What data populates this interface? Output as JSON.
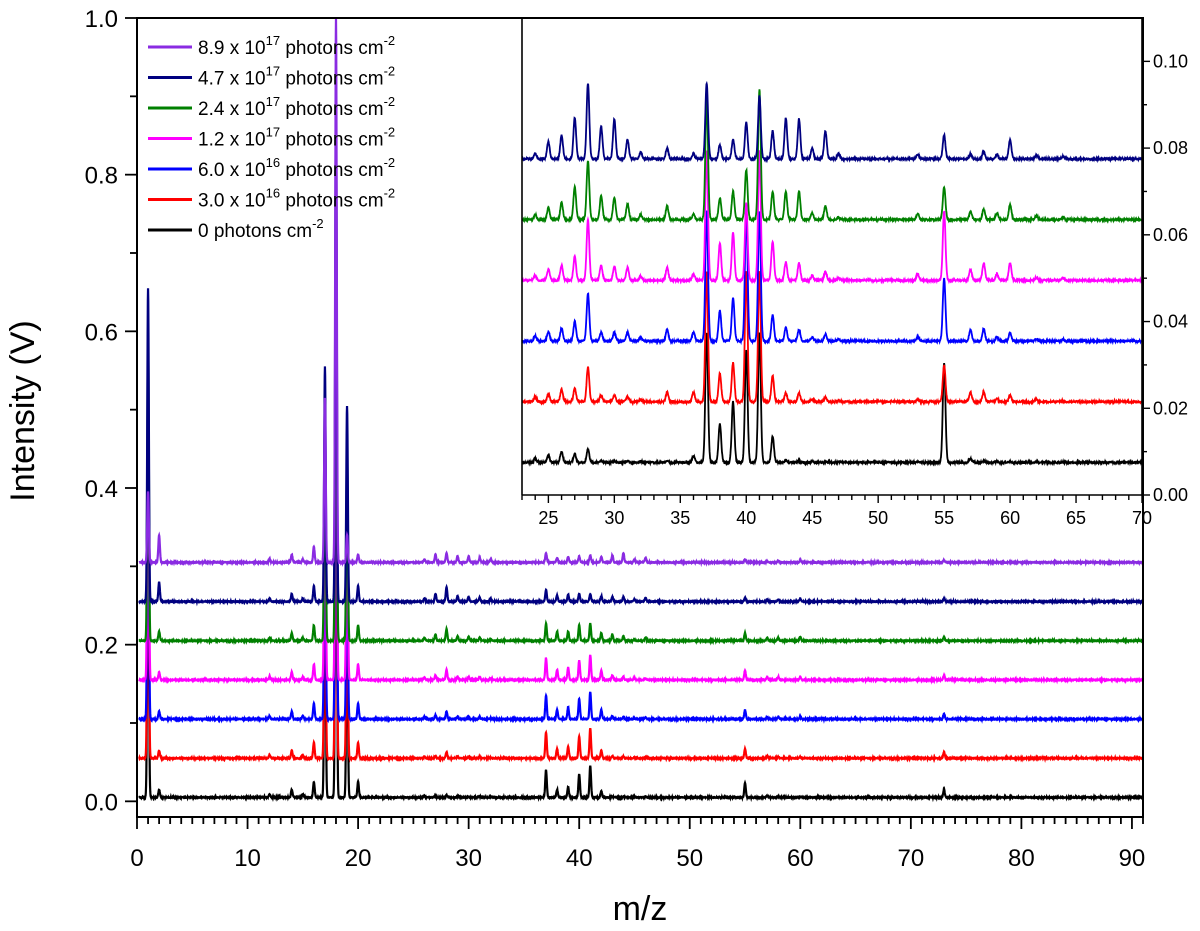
{
  "chart_data": {
    "type": "line",
    "xlabel": "m/z",
    "ylabel": "Intensity (V)",
    "xlim": [
      0,
      91
    ],
    "ylim": [
      -0.02,
      1.0
    ],
    "xticks": [
      "0",
      "10",
      "20",
      "30",
      "40",
      "50",
      "60",
      "70",
      "80",
      "90"
    ],
    "yticks": [
      "0.0",
      "0.2",
      "0.4",
      "0.6",
      "0.8",
      "1.0"
    ],
    "legend": {
      "position": "top-left"
    },
    "series": [
      {
        "name_prefix": "0",
        "name_exp": "",
        "name_suffix": " photons cm",
        "name_unit_exp": "-2",
        "color": "#000000",
        "offset": 0.005
      },
      {
        "name_prefix": "3.0 x 10",
        "name_exp": "16",
        "name_suffix": " photons cm",
        "name_unit_exp": "-2",
        "color": "#ff0000",
        "offset": 0.055
      },
      {
        "name_prefix": "6.0 x 10",
        "name_exp": "16",
        "name_suffix": " photons cm",
        "name_unit_exp": "-2",
        "color": "#0000ff",
        "offset": 0.105
      },
      {
        "name_prefix": "1.2 x 10",
        "name_exp": "17",
        "name_suffix": " photons cm",
        "name_unit_exp": "-2",
        "color": "#ff00ff",
        "offset": 0.155
      },
      {
        "name_prefix": "2.4 x 10",
        "name_exp": "17",
        "name_suffix": " photons cm",
        "name_unit_exp": "-2",
        "color": "#008000",
        "offset": 0.205
      },
      {
        "name_prefix": "4.7 x 10",
        "name_exp": "17",
        "name_suffix": " photons cm",
        "name_unit_exp": "-2",
        "color": "#000080",
        "offset": 0.255
      },
      {
        "name_prefix": "8.9 x 10",
        "name_exp": "17",
        "name_suffix": " photons cm",
        "name_unit_exp": "-2",
        "color": "#8a2be2",
        "offset": 0.305
      }
    ],
    "peak_mz": [
      1,
      2,
      12,
      14,
      15,
      16,
      17,
      18,
      19,
      20,
      26,
      27,
      28,
      29,
      30,
      31,
      32,
      37,
      38,
      39,
      40,
      41,
      42,
      43,
      44,
      45,
      46,
      55,
      57,
      58,
      60,
      73
    ],
    "peak_heights": [
      [
        0.4,
        0.01,
        0.004,
        0.01,
        0.004,
        0.02,
        0.3,
        0.65,
        0.25,
        0.02,
        0.002,
        0.002,
        0.003,
        0.001,
        0.001,
        0.001,
        0.001,
        0.035,
        0.01,
        0.013,
        0.03,
        0.04,
        0.008,
        0.001,
        0.001,
        0.001,
        0.001,
        0.018,
        0.002,
        0.001,
        0.001,
        0.01
      ],
      [
        0.4,
        0.01,
        0.004,
        0.01,
        0.004,
        0.02,
        0.3,
        0.65,
        0.25,
        0.02,
        0.002,
        0.003,
        0.008,
        0.002,
        0.002,
        0.002,
        0.001,
        0.033,
        0.012,
        0.015,
        0.028,
        0.038,
        0.01,
        0.003,
        0.002,
        0.001,
        0.001,
        0.012,
        0.003,
        0.002,
        0.002,
        0.008
      ],
      [
        0.4,
        0.01,
        0.004,
        0.01,
        0.004,
        0.02,
        0.3,
        0.65,
        0.25,
        0.02,
        0.003,
        0.005,
        0.01,
        0.003,
        0.003,
        0.003,
        0.001,
        0.03,
        0.012,
        0.015,
        0.026,
        0.035,
        0.012,
        0.004,
        0.003,
        0.001,
        0.002,
        0.012,
        0.003,
        0.003,
        0.003,
        0.007
      ],
      [
        0.4,
        0.01,
        0.004,
        0.01,
        0.004,
        0.02,
        0.3,
        0.65,
        0.25,
        0.02,
        0.003,
        0.006,
        0.013,
        0.004,
        0.004,
        0.004,
        0.002,
        0.028,
        0.013,
        0.016,
        0.025,
        0.032,
        0.012,
        0.006,
        0.004,
        0.002,
        0.002,
        0.012,
        0.004,
        0.004,
        0.004,
        0.006
      ],
      [
        0.4,
        0.012,
        0.004,
        0.01,
        0.004,
        0.02,
        0.3,
        0.65,
        0.25,
        0.02,
        0.004,
        0.008,
        0.015,
        0.006,
        0.005,
        0.004,
        0.002,
        0.022,
        0.012,
        0.012,
        0.02,
        0.022,
        0.01,
        0.008,
        0.006,
        0.002,
        0.004,
        0.01,
        0.004,
        0.004,
        0.005,
        0.005
      ],
      [
        0.4,
        0.025,
        0.004,
        0.01,
        0.004,
        0.02,
        0.3,
        0.65,
        0.25,
        0.02,
        0.004,
        0.01,
        0.018,
        0.007,
        0.006,
        0.005,
        0.003,
        0.015,
        0.008,
        0.009,
        0.01,
        0.01,
        0.007,
        0.006,
        0.006,
        0.003,
        0.005,
        0.005,
        0.003,
        0.003,
        0.004,
        0.004
      ],
      [
        0.09,
        0.035,
        0.004,
        0.01,
        0.004,
        0.02,
        0.21,
        0.695,
        0.035,
        0.01,
        0.004,
        0.01,
        0.012,
        0.008,
        0.008,
        0.006,
        0.004,
        0.012,
        0.006,
        0.007,
        0.008,
        0.009,
        0.007,
        0.009,
        0.012,
        0.004,
        0.006,
        0.004,
        0.002,
        0.002,
        0.003,
        0.003
      ]
    ],
    "inset": {
      "xlim": [
        23,
        70
      ],
      "ylim": [
        0,
        0.11
      ],
      "xticks": [
        "25",
        "30",
        "35",
        "40",
        "45",
        "50",
        "55",
        "60",
        "65",
        "70"
      ],
      "yticks": [
        "0.00",
        "0.02",
        "0.04",
        "0.06",
        "0.08",
        "0.10"
      ],
      "offsets": [
        0.0075,
        0.0215,
        0.0355,
        0.0495,
        0.0635,
        0.0775
      ],
      "peak_mz": [
        24,
        25,
        26,
        27,
        28,
        29,
        30,
        31,
        32,
        34,
        36,
        37,
        38,
        39,
        40,
        41,
        42,
        43,
        44,
        45,
        46,
        47,
        53,
        55,
        57,
        58,
        59,
        60,
        62,
        64
      ],
      "peak_heights": [
        [
          0.001,
          0.0015,
          0.0025,
          0.002,
          0.003,
          0.0003,
          0.0003,
          0.0003,
          0.0002,
          0.0003,
          0.0015,
          0.03,
          0.009,
          0.014,
          0.026,
          0.03,
          0.006,
          0.0005,
          0.0004,
          0.0002,
          0.0002,
          0.0001,
          0.0002,
          0.023,
          0.0008,
          0.0003,
          0.0002,
          0.0003,
          0.0001,
          0.0001
        ],
        [
          0.0012,
          0.0018,
          0.0028,
          0.003,
          0.008,
          0.0015,
          0.0015,
          0.0012,
          0.0005,
          0.0022,
          0.0022,
          0.03,
          0.0065,
          0.009,
          0.03,
          0.03,
          0.006,
          0.002,
          0.002,
          0.0006,
          0.001,
          0.0003,
          0.0005,
          0.0085,
          0.0022,
          0.0022,
          0.0008,
          0.0015,
          0.0005,
          0.0003
        ],
        [
          0.0012,
          0.0022,
          0.003,
          0.0045,
          0.011,
          0.002,
          0.002,
          0.002,
          0.0008,
          0.0026,
          0.002,
          0.03,
          0.007,
          0.01,
          0.03,
          0.03,
          0.006,
          0.0032,
          0.0026,
          0.0008,
          0.0016,
          0.0004,
          0.001,
          0.0145,
          0.0026,
          0.0028,
          0.0009,
          0.002,
          0.0005,
          0.0004
        ],
        [
          0.0012,
          0.0025,
          0.0035,
          0.0055,
          0.014,
          0.0035,
          0.0032,
          0.003,
          0.0009,
          0.003,
          0.0015,
          0.03,
          0.0085,
          0.011,
          0.018,
          0.03,
          0.009,
          0.0042,
          0.004,
          0.0011,
          0.002,
          0.0005,
          0.0015,
          0.016,
          0.0025,
          0.004,
          0.0015,
          0.004,
          0.0007,
          0.0005
        ],
        [
          0.0012,
          0.0028,
          0.004,
          0.0075,
          0.0135,
          0.0055,
          0.0052,
          0.0036,
          0.0012,
          0.0032,
          0.0012,
          0.028,
          0.005,
          0.0065,
          0.0115,
          0.03,
          0.0065,
          0.0065,
          0.0065,
          0.0015,
          0.0032,
          0.0005,
          0.0013,
          0.0075,
          0.0018,
          0.0024,
          0.0015,
          0.0035,
          0.0009,
          0.0005
        ],
        [
          0.0012,
          0.004,
          0.0055,
          0.0095,
          0.0175,
          0.0075,
          0.0092,
          0.0045,
          0.0015,
          0.0025,
          0.0012,
          0.0175,
          0.0032,
          0.0045,
          0.0085,
          0.0145,
          0.0065,
          0.0095,
          0.0092,
          0.0025,
          0.0065,
          0.0012,
          0.001,
          0.0055,
          0.0012,
          0.0018,
          0.001,
          0.0045,
          0.0009,
          0.0005
        ]
      ]
    }
  }
}
